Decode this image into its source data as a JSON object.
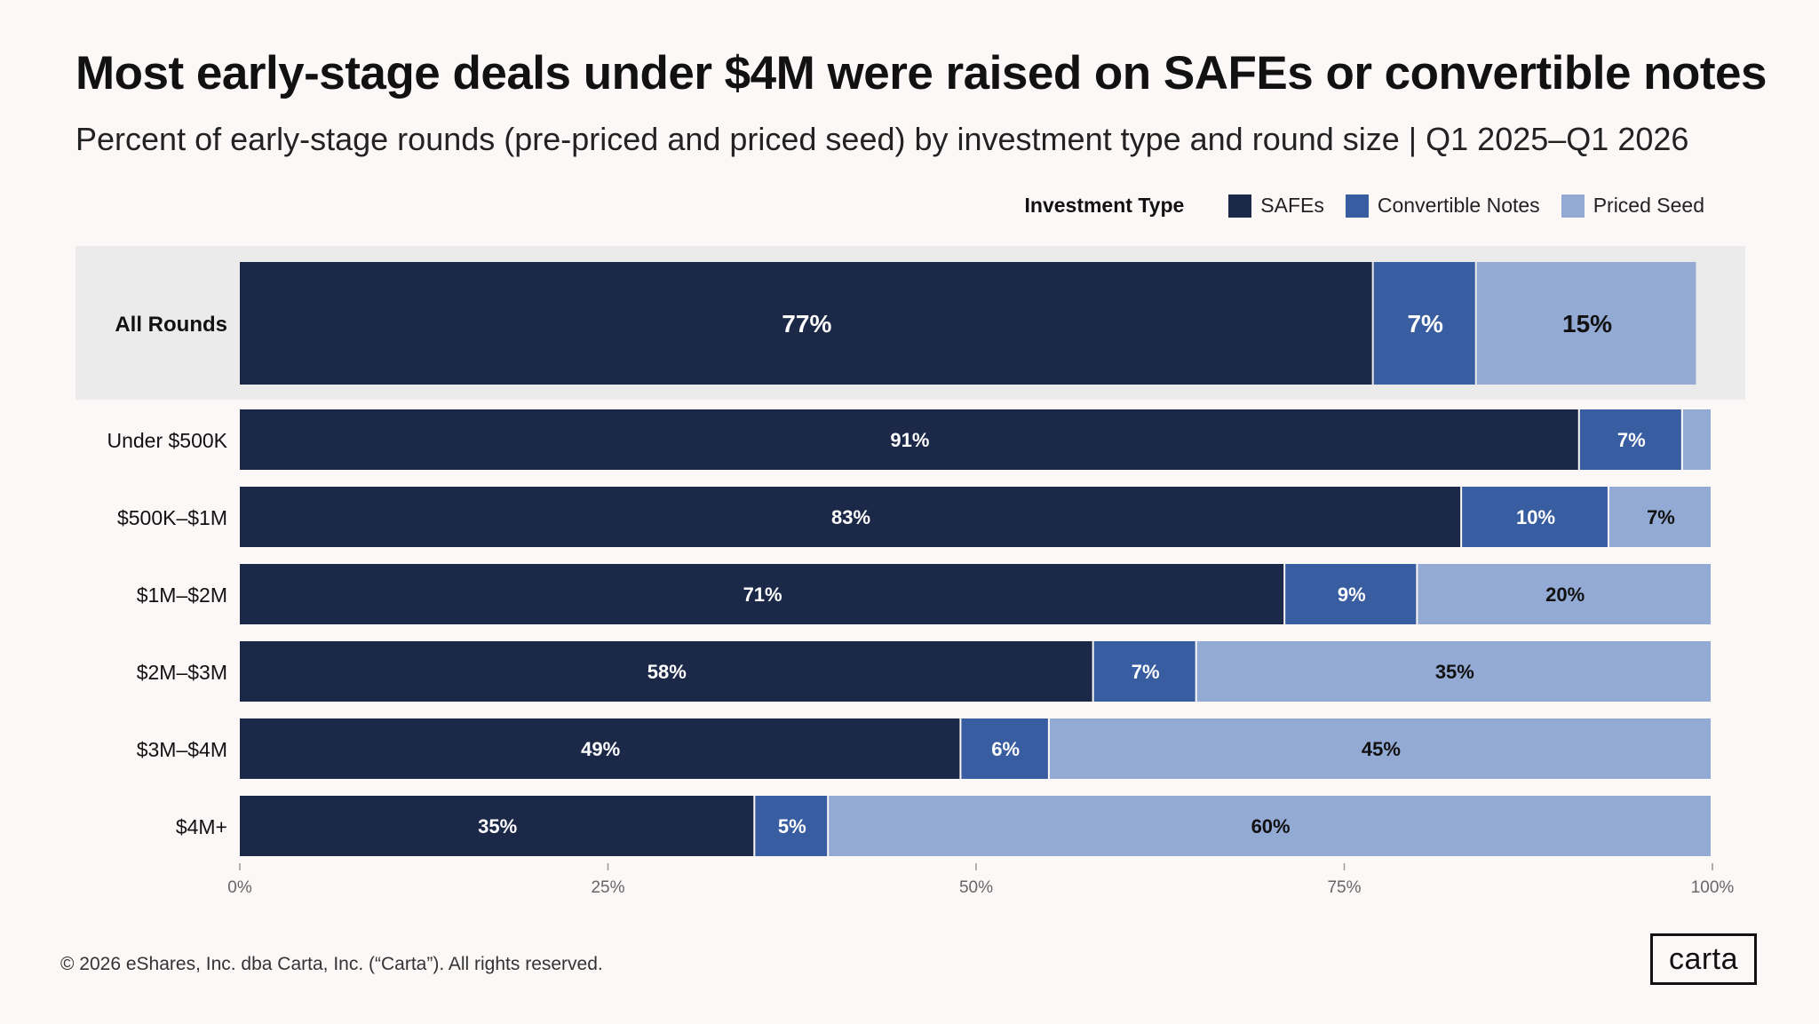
{
  "title": "Most early-stage deals under $4M were raised on SAFEs or convertible notes",
  "subtitle": "Percent of early-stage rounds (pre-priced and priced seed) by investment type and round size | Q1 2025–Q1 2026",
  "legend": {
    "title": "Investment Type",
    "items": [
      "SAFEs",
      "Convertible Notes",
      "Priced Seed"
    ]
  },
  "footer": "© 2026 eShares, Inc. dba Carta, Inc. (“Carta”). All rights reserved.",
  "logo": "carta",
  "colors": {
    "safes": "#1b2848",
    "convertible_notes": "#385da0",
    "priced_seed": "#93aad4",
    "highlight_band": "#ebebeb"
  },
  "chart_data": {
    "type": "bar",
    "orientation": "horizontal",
    "stacked": true,
    "categories": [
      "All Rounds",
      "Under $500K",
      "$500K–$1M",
      "$1M–$2M",
      "$2M–$3M",
      "$3M–$4M",
      "$4M+"
    ],
    "highlighted_category": "All Rounds",
    "series": [
      {
        "name": "SAFEs",
        "values": [
          77,
          91,
          83,
          71,
          58,
          49,
          35
        ],
        "labels": [
          "77%",
          "91%",
          "83%",
          "71%",
          "58%",
          "49%",
          "35%"
        ]
      },
      {
        "name": "Convertible Notes",
        "values": [
          7,
          7,
          10,
          9,
          7,
          6,
          5
        ],
        "labels": [
          "7%",
          "7%",
          "10%",
          "9%",
          "7%",
          "6%",
          "5%"
        ]
      },
      {
        "name": "Priced Seed",
        "values": [
          15,
          2,
          7,
          20,
          35,
          45,
          60
        ],
        "labels": [
          "15%",
          "",
          "7%",
          "20%",
          "35%",
          "45%",
          "60%"
        ]
      }
    ],
    "xlim": [
      0,
      100
    ],
    "xticks": [
      "0%",
      "25%",
      "50%",
      "75%",
      "100%"
    ],
    "xlabel": "",
    "ylabel": "",
    "grid": false,
    "legend_position": "top-right"
  }
}
